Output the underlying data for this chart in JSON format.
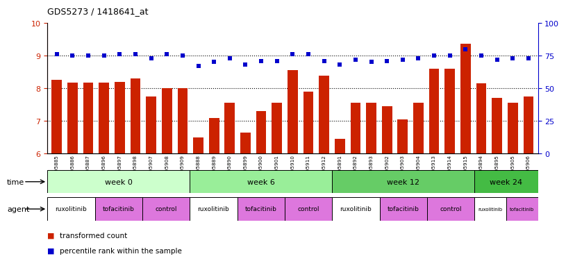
{
  "title": "GDS5273 / 1418641_at",
  "samples": [
    "GSM1105885",
    "GSM1105886",
    "GSM1105887",
    "GSM1105896",
    "GSM1105897",
    "GSM1105898",
    "GSM1105907",
    "GSM1105908",
    "GSM1105909",
    "GSM1105888",
    "GSM1105889",
    "GSM1105890",
    "GSM1105899",
    "GSM1105900",
    "GSM1105901",
    "GSM1105910",
    "GSM1105911",
    "GSM1105912",
    "GSM1105891",
    "GSM1105892",
    "GSM1105893",
    "GSM1105902",
    "GSM1105903",
    "GSM1105904",
    "GSM1105913",
    "GSM1105914",
    "GSM1105915",
    "GSM1105894",
    "GSM1105895",
    "GSM1105905",
    "GSM1105906"
  ],
  "bar_values": [
    8.25,
    8.18,
    8.18,
    8.18,
    8.2,
    8.3,
    7.75,
    8.0,
    8.0,
    6.5,
    7.1,
    7.55,
    6.65,
    7.3,
    7.55,
    8.55,
    7.9,
    8.38,
    6.45,
    7.55,
    7.55,
    7.45,
    7.05,
    7.55,
    8.6,
    8.6,
    9.35,
    8.15,
    7.7,
    7.55,
    7.75
  ],
  "dot_values": [
    76,
    75,
    75,
    75,
    76,
    76,
    73,
    76,
    75,
    67,
    70,
    73,
    68,
    71,
    71,
    76,
    76,
    71,
    68,
    72,
    70,
    71,
    72,
    73,
    75,
    75,
    80,
    75,
    72,
    73,
    73
  ],
  "bar_color": "#cc2200",
  "dot_color": "#0000cc",
  "ylim_left": [
    6,
    10
  ],
  "ylim_right": [
    0,
    100
  ],
  "yticks_left": [
    6,
    7,
    8,
    9,
    10
  ],
  "yticks_right": [
    0,
    25,
    50,
    75,
    100
  ],
  "time_groups": [
    {
      "label": "week 0",
      "start": 0,
      "end": 9,
      "color": "#ccffcc"
    },
    {
      "label": "week 6",
      "start": 9,
      "end": 18,
      "color": "#99ee99"
    },
    {
      "label": "week 12",
      "start": 18,
      "end": 27,
      "color": "#66cc66"
    },
    {
      "label": "week 24",
      "start": 27,
      "end": 31,
      "color": "#44bb44"
    }
  ],
  "agent_groups": [
    {
      "label": "ruxolitinib",
      "start": 0,
      "end": 3,
      "color": "#ffffff"
    },
    {
      "label": "tofacitinib",
      "start": 3,
      "end": 6,
      "color": "#dd77dd"
    },
    {
      "label": "control",
      "start": 6,
      "end": 9,
      "color": "#dd77dd"
    },
    {
      "label": "ruxolitinib",
      "start": 9,
      "end": 12,
      "color": "#ffffff"
    },
    {
      "label": "tofacitinib",
      "start": 12,
      "end": 15,
      "color": "#dd77dd"
    },
    {
      "label": "control",
      "start": 15,
      "end": 18,
      "color": "#dd77dd"
    },
    {
      "label": "ruxolitinib",
      "start": 18,
      "end": 21,
      "color": "#ffffff"
    },
    {
      "label": "tofacitinib",
      "start": 21,
      "end": 24,
      "color": "#dd77dd"
    },
    {
      "label": "control",
      "start": 24,
      "end": 27,
      "color": "#dd77dd"
    },
    {
      "label": "ruxolitinib",
      "start": 27,
      "end": 29,
      "color": "#ffffff"
    },
    {
      "label": "tofacitinib",
      "start": 29,
      "end": 31,
      "color": "#dd77dd"
    }
  ],
  "legend_bar_label": "transformed count",
  "legend_dot_label": "percentile rank within the sample",
  "time_label": "time",
  "agent_label": "agent"
}
